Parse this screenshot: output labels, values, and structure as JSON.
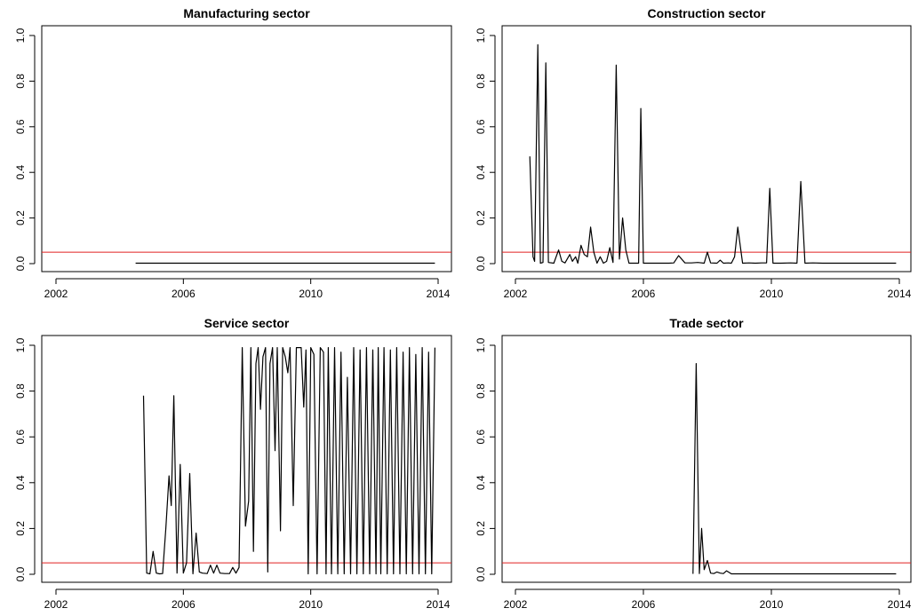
{
  "colors": {
    "series": "#000000",
    "threshold": "#e02020",
    "frame": "#000000"
  },
  "chart_data": [
    {
      "type": "line",
      "title": "Manufacturing sector",
      "xlim": [
        2001.5,
        2014.5
      ],
      "ylim": [
        0.0,
        1.0
      ],
      "xticks": [
        2002,
        2006,
        2010,
        2014
      ],
      "yticks": [
        "0.0",
        "0.2",
        "0.4",
        "0.6",
        "0.8",
        "1.0"
      ],
      "threshold": 0.05,
      "x": [
        2004.5,
        2013.9
      ],
      "y": [
        0.002,
        0.002
      ]
    },
    {
      "type": "line",
      "title": "Construction sector",
      "xlim": [
        2001.5,
        2014.5
      ],
      "ylim": [
        0.0,
        1.0
      ],
      "xticks": [
        2002,
        2006,
        2010,
        2014
      ],
      "yticks": [
        "0.0",
        "0.2",
        "0.4",
        "0.6",
        "0.8",
        "1.0"
      ],
      "threshold": 0.05,
      "x": [
        2002.45,
        2002.55,
        2002.6,
        2002.7,
        2002.78,
        2002.86,
        2002.95,
        2003.03,
        2003.2,
        2003.35,
        2003.45,
        2003.55,
        2003.7,
        2003.78,
        2003.88,
        2003.95,
        2004.05,
        2004.15,
        2004.25,
        2004.35,
        2004.45,
        2004.55,
        2004.65,
        2004.75,
        2004.85,
        2004.95,
        2005.05,
        2005.15,
        2005.25,
        2005.35,
        2005.45,
        2005.55,
        2005.7,
        2005.85,
        2005.92,
        2006.0,
        2006.2,
        2006.5,
        2006.8,
        2006.95,
        2007.1,
        2007.3,
        2007.5,
        2007.7,
        2007.9,
        2008.0,
        2008.1,
        2008.3,
        2008.4,
        2008.5,
        2008.65,
        2008.75,
        2008.85,
        2008.95,
        2009.1,
        2009.3,
        2009.5,
        2009.7,
        2009.85,
        2009.95,
        2010.05,
        2010.3,
        2010.6,
        2010.8,
        2010.92,
        2011.05,
        2011.3,
        2011.6,
        2012.0,
        2012.5,
        2013.0,
        2013.5,
        2013.9
      ],
      "y": [
        0.47,
        0.03,
        0.01,
        0.96,
        0.002,
        0.005,
        0.88,
        0.005,
        0.002,
        0.06,
        0.01,
        0.003,
        0.04,
        0.01,
        0.03,
        0.002,
        0.08,
        0.04,
        0.03,
        0.16,
        0.05,
        0.002,
        0.03,
        0.002,
        0.01,
        0.07,
        0.005,
        0.87,
        0.02,
        0.2,
        0.06,
        0.002,
        0.002,
        0.002,
        0.68,
        0.002,
        0.002,
        0.002,
        0.002,
        0.003,
        0.035,
        0.003,
        0.003,
        0.005,
        0.002,
        0.05,
        0.003,
        0.002,
        0.015,
        0.002,
        0.003,
        0.002,
        0.03,
        0.16,
        0.002,
        0.003,
        0.002,
        0.003,
        0.003,
        0.33,
        0.002,
        0.002,
        0.003,
        0.002,
        0.36,
        0.002,
        0.003,
        0.002,
        0.002,
        0.002,
        0.002,
        0.002,
        0.002
      ]
    },
    {
      "type": "line",
      "title": "Service sector",
      "xlim": [
        2001.5,
        2014.5
      ],
      "ylim": [
        0.0,
        1.0
      ],
      "xticks": [
        2002,
        2006,
        2010,
        2014
      ],
      "yticks": [
        "0.0",
        "0.2",
        "0.4",
        "0.6",
        "0.8",
        "1.0"
      ],
      "threshold": 0.05,
      "x": [
        2004.75,
        2004.85,
        2004.95,
        2005.05,
        2005.15,
        2005.25,
        2005.35,
        2005.45,
        2005.55,
        2005.62,
        2005.7,
        2005.8,
        2005.9,
        2006.0,
        2006.1,
        2006.2,
        2006.3,
        2006.4,
        2006.5,
        2006.6,
        2006.75,
        2006.85,
        2006.95,
        2007.05,
        2007.15,
        2007.3,
        2007.45,
        2007.55,
        2007.65,
        2007.75,
        2007.85,
        2007.95,
        2008.05,
        2008.12,
        2008.2,
        2008.28,
        2008.35,
        2008.42,
        2008.5,
        2008.58,
        2008.65,
        2008.72,
        2008.8,
        2008.88,
        2008.95,
        2009.05,
        2009.12,
        2009.2,
        2009.28,
        2009.35,
        2009.45,
        2009.55,
        2009.62,
        2009.7,
        2009.78,
        2009.85,
        2009.92,
        2010.0,
        2010.1,
        2010.2,
        2010.3,
        2010.4,
        2010.48,
        2010.55,
        2010.65,
        2010.75,
        2010.85,
        2010.95,
        2011.05,
        2011.15,
        2011.25,
        2011.35,
        2011.45,
        2011.55,
        2011.65,
        2011.75,
        2011.85,
        2011.95,
        2012.05,
        2012.12,
        2012.2,
        2012.3,
        2012.4,
        2012.5,
        2012.6,
        2012.7,
        2012.8,
        2012.9,
        2013.0,
        2013.1,
        2013.2,
        2013.3,
        2013.4,
        2013.5,
        2013.6,
        2013.7,
        2013.8,
        2013.9
      ],
      "y": [
        0.78,
        0.005,
        0.002,
        0.1,
        0.005,
        0.002,
        0.003,
        0.2,
        0.43,
        0.3,
        0.78,
        0.005,
        0.48,
        0.005,
        0.05,
        0.44,
        0.002,
        0.18,
        0.01,
        0.005,
        0.003,
        0.04,
        0.005,
        0.04,
        0.005,
        0.003,
        0.003,
        0.03,
        0.005,
        0.03,
        0.99,
        0.21,
        0.32,
        0.99,
        0.1,
        0.92,
        0.99,
        0.72,
        0.95,
        0.99,
        0.01,
        0.92,
        0.99,
        0.54,
        0.99,
        0.19,
        0.99,
        0.95,
        0.88,
        0.99,
        0.3,
        0.99,
        0.99,
        0.99,
        0.73,
        0.98,
        0.002,
        0.99,
        0.96,
        0.002,
        0.99,
        0.97,
        0.002,
        0.99,
        0.002,
        0.99,
        0.002,
        0.97,
        0.002,
        0.86,
        0.002,
        0.99,
        0.002,
        0.98,
        0.002,
        0.99,
        0.002,
        0.98,
        0.002,
        0.99,
        0.002,
        0.99,
        0.002,
        0.98,
        0.002,
        0.99,
        0.002,
        0.97,
        0.002,
        0.99,
        0.002,
        0.96,
        0.002,
        0.99,
        0.002,
        0.97,
        0.002,
        0.99
      ]
    },
    {
      "type": "line",
      "title": "Trade sector",
      "xlim": [
        2001.5,
        2014.5
      ],
      "ylim": [
        0.0,
        1.0
      ],
      "xticks": [
        2002,
        2006,
        2010,
        2014
      ],
      "yticks": [
        "0.0",
        "0.2",
        "0.4",
        "0.6",
        "0.8",
        "1.0"
      ],
      "threshold": 0.05,
      "x": [
        2007.55,
        2007.65,
        2007.75,
        2007.82,
        2007.9,
        2008.0,
        2008.1,
        2008.2,
        2008.3,
        2008.4,
        2008.5,
        2008.6,
        2008.75,
        2009.0,
        2010.0,
        2011.0,
        2012.0,
        2013.0,
        2013.9
      ],
      "y": [
        0.002,
        0.92,
        0.003,
        0.2,
        0.02,
        0.06,
        0.005,
        0.003,
        0.01,
        0.005,
        0.003,
        0.015,
        0.002,
        0.002,
        0.002,
        0.002,
        0.002,
        0.002,
        0.002
      ]
    }
  ]
}
